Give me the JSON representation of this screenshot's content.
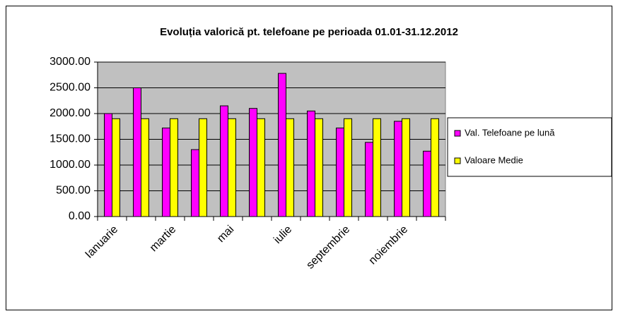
{
  "chart_data": {
    "type": "bar",
    "title": "Evoluția valorică pt. telefoane pe perioada 01.01-31.12.2012",
    "categories": [
      "Ianuarie",
      null,
      "martie",
      null,
      "mai",
      null,
      "iulie",
      null,
      "septembrie",
      null,
      "noiembrie",
      null
    ],
    "series": [
      {
        "name": "Val. Telefoane pe lună",
        "color": "#ff00ff",
        "values": [
          2000,
          2500,
          1720,
          1300,
          2150,
          2100,
          2780,
          2050,
          1720,
          1440,
          1850,
          1270
        ]
      },
      {
        "name": "Valoare Medie",
        "color": "#ffff00",
        "values": [
          1900,
          1900,
          1900,
          1900,
          1900,
          1900,
          1900,
          1900,
          1900,
          1900,
          1900,
          1900
        ]
      }
    ],
    "ylim": [
      0,
      3000
    ],
    "yticks": [
      {
        "value": 0,
        "label": "0.00"
      },
      {
        "value": 500,
        "label": "500.00"
      },
      {
        "value": 1000,
        "label": "1000.00"
      },
      {
        "value": 1500,
        "label": "1500.00"
      },
      {
        "value": 2000,
        "label": "2000.00"
      },
      {
        "value": 2500,
        "label": "2500.00"
      },
      {
        "value": 3000,
        "label": "3000.00"
      }
    ],
    "grid": true,
    "legend": "right"
  }
}
